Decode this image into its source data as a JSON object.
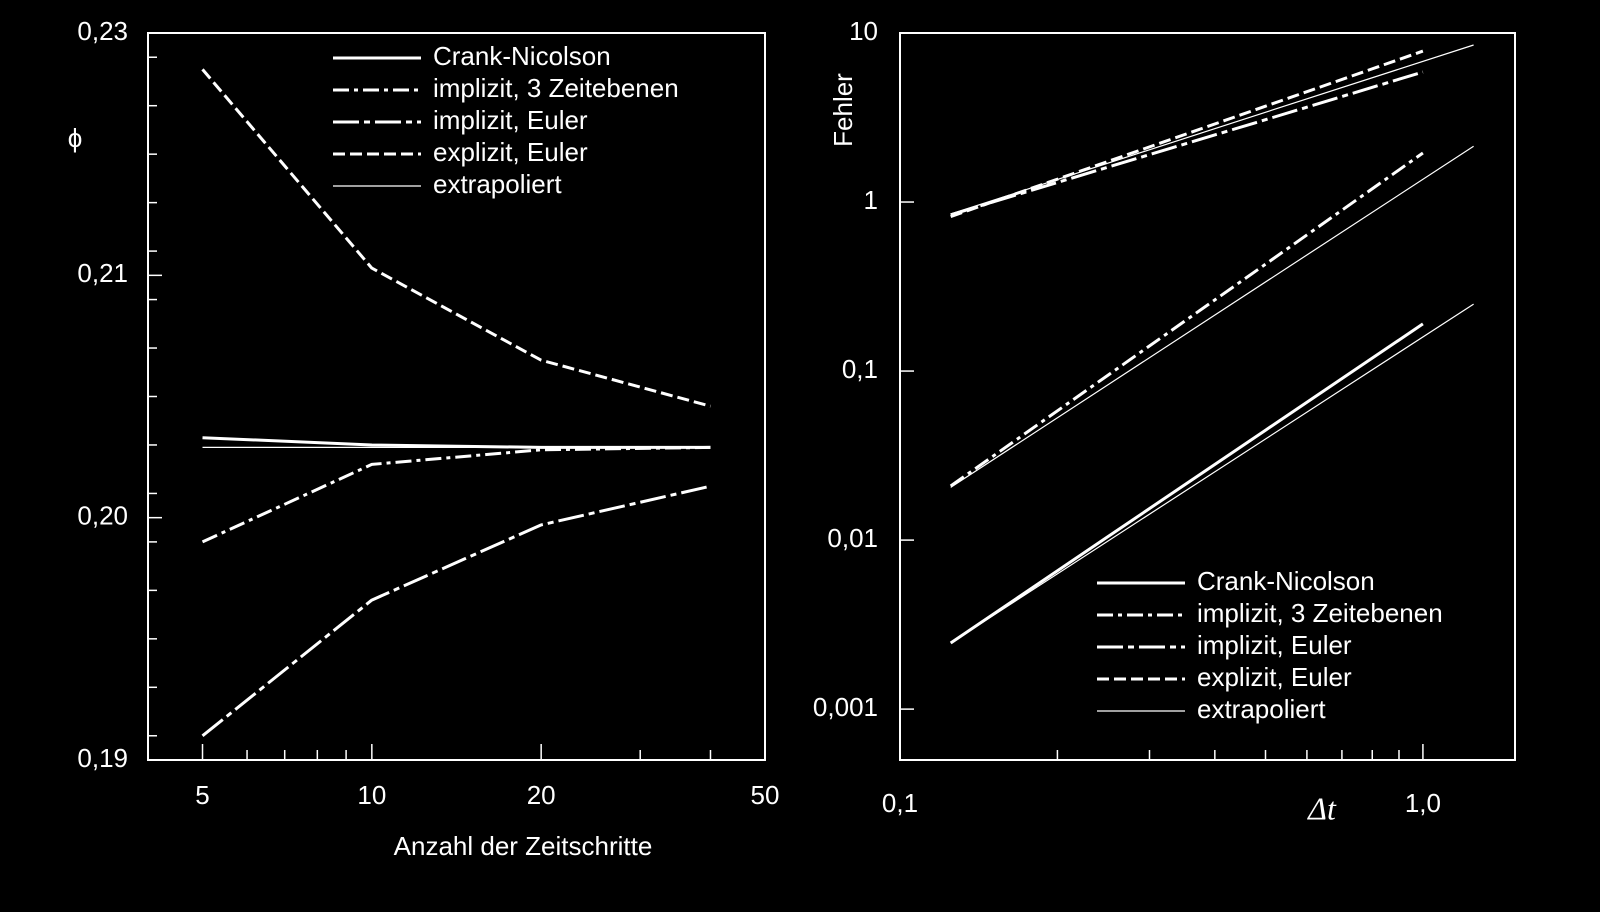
{
  "chart_data": [
    {
      "type": "line",
      "xlabel": "Anzahl der Zeitschritte",
      "ylabel": "ϕ",
      "x": [
        5,
        10,
        20,
        40
      ],
      "xscale": "log",
      "xlim": [
        4,
        50
      ],
      "xticks": [
        5,
        10,
        20,
        50
      ],
      "xminorticks": [
        6,
        7,
        8,
        9,
        30,
        40
      ],
      "ylim": [
        0.19,
        0.22
      ],
      "yticks": [
        {
          "value": 0.19,
          "label": "0,19"
        },
        {
          "value": 0.2,
          "label": "0,20"
        },
        {
          "value": 0.21,
          "label": "0,21"
        }
      ],
      "y_axis_end_label": "0,23",
      "yminorticks": [
        0.191,
        0.193,
        0.195,
        0.197,
        0.199,
        0.201,
        0.203,
        0.205,
        0.207,
        0.209,
        0.211,
        0.213,
        0.215,
        0.217,
        0.219
      ],
      "legend": "upper right",
      "series": [
        {
          "name": "Crank-Nicolson",
          "color": "#ffffff",
          "dash": "none",
          "width": 3,
          "values": [
            0.2033,
            0.203,
            0.2029,
            0.2029
          ]
        },
        {
          "name": "implizit, 3 Zeitebenen",
          "color": "#ffffff",
          "dash": "16,5,4,5",
          "width": 3,
          "values": [
            0.199,
            0.2022,
            0.2028,
            0.2029
          ]
        },
        {
          "name": "implizit, Euler",
          "color": "#ffffff",
          "dash": "26,5,6,5",
          "width": 3,
          "values": [
            0.191,
            0.1966,
            0.1997,
            0.2013
          ]
        },
        {
          "name": "explizit, Euler",
          "color": "#ffffff",
          "dash": "12,5",
          "width": 3,
          "values": [
            0.2185,
            0.2103,
            0.2065,
            0.2046
          ]
        },
        {
          "name": "extrapoliert",
          "color": "#ffffff",
          "dash": "none",
          "width": 1.2,
          "values": [
            0.2029,
            0.2029,
            0.2029,
            0.2029
          ]
        }
      ]
    },
    {
      "type": "line",
      "xlabel": "Δt",
      "ylabel": "Fehler",
      "x": [
        0.125,
        0.25,
        0.5,
        1.0
      ],
      "xscale": "log",
      "xlim": [
        0.1,
        1.5
      ],
      "xticks": [
        {
          "value": 0.1,
          "label": "0,1"
        },
        {
          "value": 1.0,
          "label": "1,0"
        }
      ],
      "xminorticks": [
        0.2,
        0.3,
        0.4,
        0.5,
        0.6,
        0.7,
        0.8,
        0.9
      ],
      "yscale": "log",
      "ylim": [
        0.0005,
        10
      ],
      "yticks": [
        {
          "value": 0.001,
          "label": "0,001"
        },
        {
          "value": 0.01,
          "label": "0,01"
        },
        {
          "value": 0.1,
          "label": "0,1"
        },
        1,
        10
      ],
      "legend": "lower right",
      "series": [
        {
          "name": "Crank-Nicolson",
          "color": "#ffffff",
          "dash": "none",
          "width": 3,
          "values": [
            0.00246,
            0.0105,
            0.0447,
            0.19
          ]
        },
        {
          "name": "implizit, 3 Zeitebenen",
          "color": "#ffffff",
          "dash": "16,5,4,5",
          "width": 3,
          "values": [
            0.0209,
            0.0947,
            0.429,
            1.95
          ]
        },
        {
          "name": "implizit, Euler",
          "color": "#ffffff",
          "dash": "26,5,6,5",
          "width": 3,
          "values": [
            0.84,
            1.61,
            3.07,
            5.88
          ]
        },
        {
          "name": "explizit, Euler",
          "color": "#ffffff",
          "dash": "12,5",
          "width": 3,
          "values": [
            0.82,
            1.74,
            3.69,
            7.82
          ]
        },
        {
          "name": "extrapoliert",
          "color": "#ffffff",
          "dash": "none",
          "width": 1.2,
          "x": [
            0.125,
            1.25,
            null,
            0.125,
            1.25,
            null,
            0.125,
            1.25
          ],
          "values": [
            0.85,
            8.49,
            null,
            0.0205,
            2.14,
            null,
            0.00246,
            0.249
          ]
        }
      ]
    }
  ]
}
